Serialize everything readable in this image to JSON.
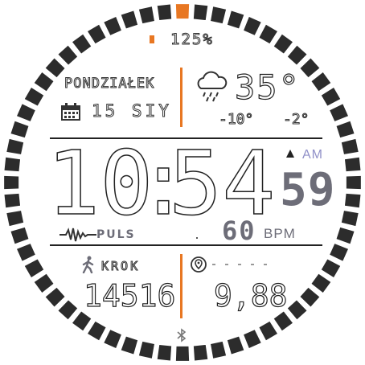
{
  "battery": {
    "icon": "battery-icon",
    "value": "125%",
    "accent": "#e87722"
  },
  "date": {
    "weekday": "PONDZIAŁEK",
    "calendar_icon": "calendar-icon",
    "day_month": "15 SIY"
  },
  "weather": {
    "icon": "cloud-rain-icon",
    "temperature": "35°",
    "low": "-10°",
    "high": "-2°"
  },
  "time": {
    "hours": "10",
    "separator": ":",
    "minutes": "54",
    "seconds": "59",
    "ampm": "AM",
    "ampm_icon": "triangle-up-icon"
  },
  "pulse": {
    "icon": "heartbeat-icon",
    "label": "PULS",
    "value": "60",
    "unit": "BPM"
  },
  "steps": {
    "icon": "walking-person-icon",
    "label": "KROK",
    "value": "14516"
  },
  "distance": {
    "icon": "location-pin-icon",
    "value": "9,88"
  },
  "bluetooth": {
    "icon": "bluetooth-icon"
  },
  "colors": {
    "bezel": "#2c2c2c",
    "accent": "#e87722",
    "seconds": "#6d6d78"
  }
}
